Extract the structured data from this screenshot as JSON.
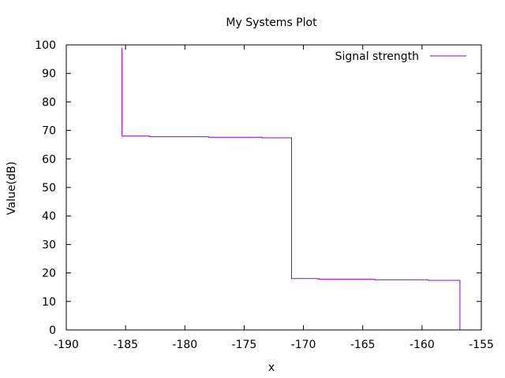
{
  "chart_data": {
    "type": "line",
    "title": "My Systems Plot",
    "xlabel": "x",
    "ylabel": "Value(dB)",
    "xlim": [
      -190,
      -155
    ],
    "ylim": [
      0,
      100
    ],
    "xticks": [
      -190,
      -185,
      -180,
      -175,
      -170,
      -165,
      -160,
      -155
    ],
    "yticks": [
      0,
      10,
      20,
      30,
      40,
      50,
      60,
      70,
      80,
      90,
      100
    ],
    "grid": false,
    "legend_position": "top-right",
    "series": [
      {
        "name": "Signal strength",
        "color": "#9400d3",
        "step": true,
        "points": [
          [
            -185.3,
            99
          ],
          [
            -185.3,
            68
          ],
          [
            -183,
            67.8
          ],
          [
            -178,
            67.6
          ],
          [
            -173.5,
            67.4
          ],
          [
            -171,
            67.2
          ],
          [
            -171,
            18
          ],
          [
            -168.7,
            17.8
          ],
          [
            -164,
            17.6
          ],
          [
            -159.5,
            17.4
          ],
          [
            -156.8,
            17.2
          ],
          [
            -156.8,
            0
          ]
        ]
      }
    ]
  }
}
